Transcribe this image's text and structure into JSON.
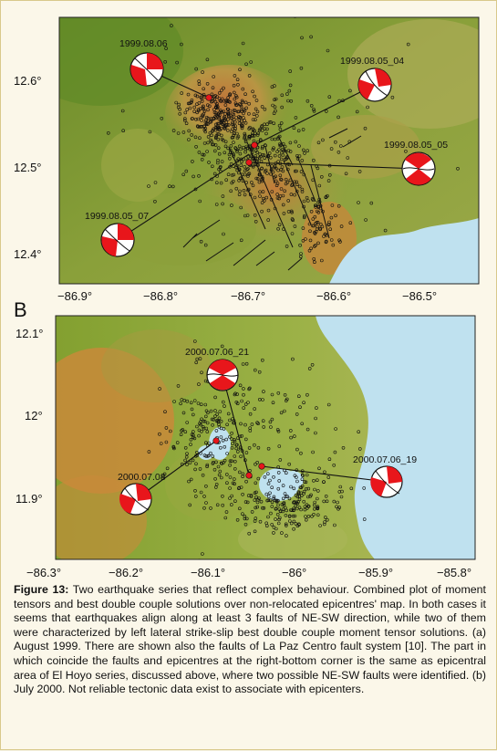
{
  "panel_b_letter": "B",
  "map_a": {
    "lat_ticks": [
      "12.6°",
      "12.5°",
      "12.4°"
    ],
    "lon_ticks": [
      "−86.9°",
      "−86.8°",
      "−86.7°",
      "−86.6°",
      "−86.5°"
    ],
    "events": [
      {
        "label": "1999.08.06"
      },
      {
        "label": "1999.08.05_04"
      },
      {
        "label": "1999.08.05_05"
      },
      {
        "label": "1999.08.05_07"
      }
    ]
  },
  "map_b": {
    "lat_ticks": [
      "12.1°",
      "12°",
      "11.9°"
    ],
    "lon_ticks": [
      "−86.3°",
      "−86.2°",
      "−86.1°",
      "−86°",
      "−85.9°",
      "−85.8°"
    ],
    "events": [
      {
        "label": "2000.07.06_21"
      },
      {
        "label": "2000.07.08"
      },
      {
        "label": "2000.07.06_19"
      }
    ]
  },
  "caption": {
    "figure_label": "Figure 13:",
    "text": " Two earthquake series that reflect complex behaviour. Combined plot of moment tensors and best double couple solutions over non-relocated epicentres' map. In both cases it seems that earthquakes align along at least 3 faults of NE-SW direction, while  two of them were characterized by left lateral strike-slip best double couple moment tensor solutions. (a) August 1999. There are shown also the faults of La Paz Centro fault system [10]. The part in which coincide the faults and epicentres at the right-bottom corner is the same as epicentral area of El Hoyo series, discussed above, where two possible NE-SW faults were identified. (b) July 2000. Not reliable tectonic data exist to associate with epicenters."
  },
  "colors": {
    "mechanism_red": "#e8161b",
    "lake_blue": "#bfe1ef",
    "terrain_low": "#6f8f2a",
    "terrain_high": "#c98a3a"
  }
}
